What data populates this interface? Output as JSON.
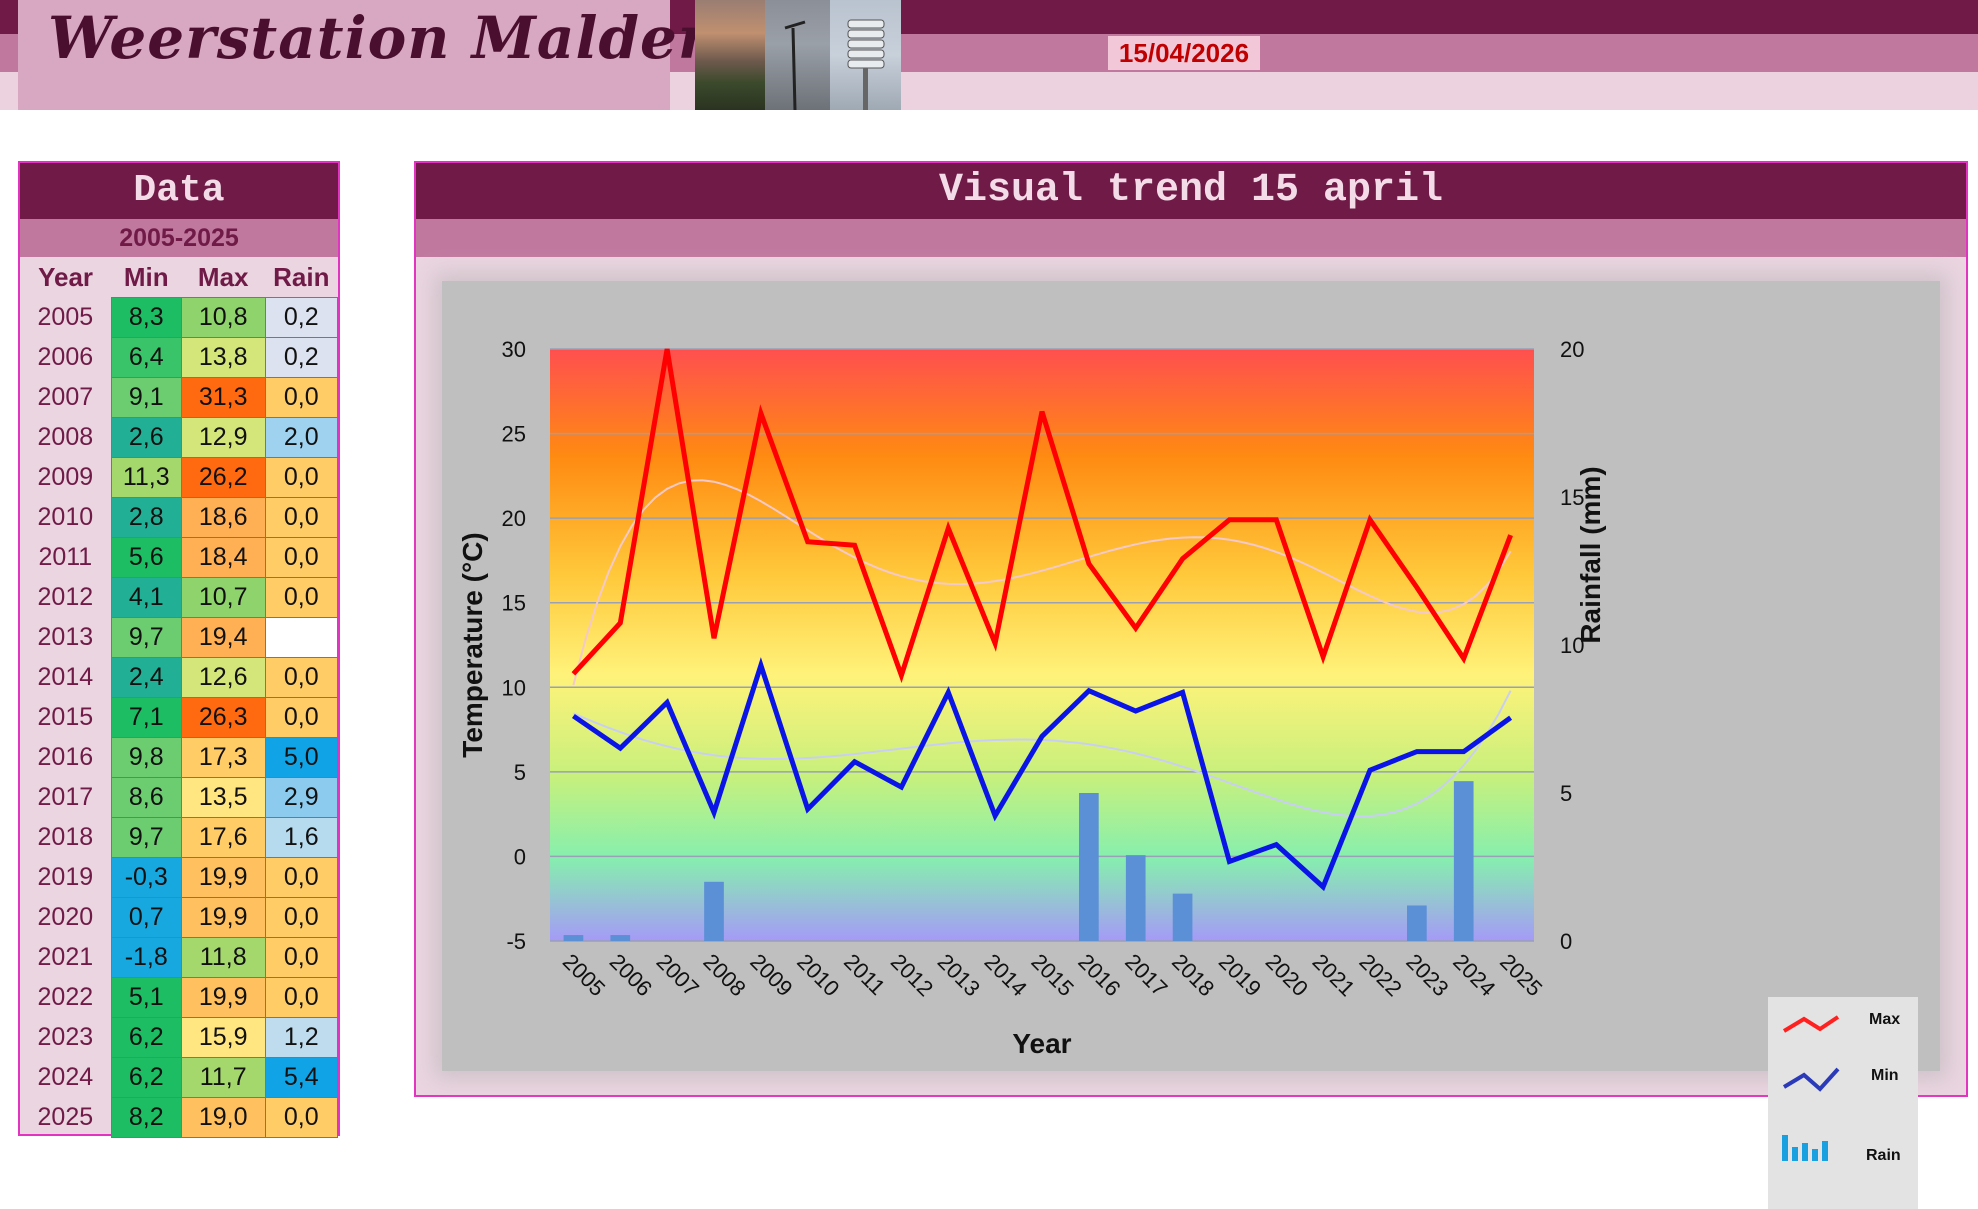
{
  "header": {
    "title": "Weerstation Malderen",
    "date": "15/04/2026"
  },
  "data_table": {
    "title": "Data",
    "range": "2005-2025",
    "columns": [
      "Year",
      "Min",
      "Max",
      "Rain"
    ],
    "rows": [
      {
        "year": "2005",
        "min": "8,3",
        "max": "10,8",
        "rain": "0,2"
      },
      {
        "year": "2006",
        "min": "6,4",
        "max": "13,8",
        "rain": "0,2"
      },
      {
        "year": "2007",
        "min": "9,1",
        "max": "31,3",
        "rain": "0,0"
      },
      {
        "year": "2008",
        "min": "2,6",
        "max": "12,9",
        "rain": "2,0"
      },
      {
        "year": "2009",
        "min": "11,3",
        "max": "26,2",
        "rain": "0,0"
      },
      {
        "year": "2010",
        "min": "2,8",
        "max": "18,6",
        "rain": "0,0"
      },
      {
        "year": "2011",
        "min": "5,6",
        "max": "18,4",
        "rain": "0,0"
      },
      {
        "year": "2012",
        "min": "4,1",
        "max": "10,7",
        "rain": "0,0"
      },
      {
        "year": "2013",
        "min": "9,7",
        "max": "19,4",
        "rain": ""
      },
      {
        "year": "2014",
        "min": "2,4",
        "max": "12,6",
        "rain": "0,0"
      },
      {
        "year": "2015",
        "min": "7,1",
        "max": "26,3",
        "rain": "0,0"
      },
      {
        "year": "2016",
        "min": "9,8",
        "max": "17,3",
        "rain": "5,0"
      },
      {
        "year": "2017",
        "min": "8,6",
        "max": "13,5",
        "rain": "2,9"
      },
      {
        "year": "2018",
        "min": "9,7",
        "max": "17,6",
        "rain": "1,6"
      },
      {
        "year": "2019",
        "min": "-0,3",
        "max": "19,9",
        "rain": "0,0"
      },
      {
        "year": "2020",
        "min": "0,7",
        "max": "19,9",
        "rain": "0,0"
      },
      {
        "year": "2021",
        "min": "-1,8",
        "max": "11,8",
        "rain": "0,0"
      },
      {
        "year": "2022",
        "min": "5,1",
        "max": "19,9",
        "rain": "0,0"
      },
      {
        "year": "2023",
        "min": "6,2",
        "max": "15,9",
        "rain": "1,2"
      },
      {
        "year": "2024",
        "min": "6,2",
        "max": "11,7",
        "rain": "5,4"
      },
      {
        "year": "2025",
        "min": "8,2",
        "max": "19,0",
        "rain": "0,0"
      }
    ],
    "cell_colors": {
      "min": [
        "#1cbd63",
        "#39c469",
        "#6ccc70",
        "#21b096",
        "#a5d86c",
        "#21b096",
        "#1cbd63",
        "#21b096",
        "#6ccc70",
        "#21b096",
        "#1cbd63",
        "#6ccc70",
        "#6ccc70",
        "#6ccc70",
        "#18a8e0",
        "#18a8e0",
        "#18a8e0",
        "#1cbd63",
        "#1cbd63",
        "#1cbd63",
        "#1cbd63"
      ],
      "max": [
        "#8fd36c",
        "#d4e67a",
        "#ff6a10",
        "#d4e67a",
        "#ff6a10",
        "#ffb055",
        "#ffb055",
        "#8fd36c",
        "#ffb055",
        "#d4e67a",
        "#ff6a10",
        "#ffcc66",
        "#ffe680",
        "#ffcc66",
        "#ffc060",
        "#ffc060",
        "#a5d86c",
        "#ffc060",
        "#ffe680",
        "#a5d86c",
        "#ffc060"
      ],
      "rain": [
        "#dce2f0",
        "#dce2f0",
        "#ffcc66",
        "#9fd2ef",
        "#ffcc66",
        "#ffcc66",
        "#ffcc66",
        "#ffcc66",
        "#ffffff",
        "#ffcc66",
        "#ffcc66",
        "#10a4e6",
        "#8ccbee",
        "#b6dbef",
        "#ffcc66",
        "#ffcc66",
        "#ffcc66",
        "#ffcc66",
        "#bfdcef",
        "#10a4e6",
        "#ffcc66"
      ]
    }
  },
  "chart_data": {
    "type": "line",
    "title": "Visual trend 15 april",
    "xlabel": "Year",
    "ylabel": "Temperature (°C)",
    "y2label": "Rainfall (mm)",
    "categories": [
      "2005",
      "2006",
      "2007",
      "2008",
      "2009",
      "2010",
      "2011",
      "2012",
      "2013",
      "2014",
      "2015",
      "2016",
      "2017",
      "2018",
      "2019",
      "2020",
      "2021",
      "2022",
      "2023",
      "2024",
      "2025"
    ],
    "ylim": [
      -5,
      30
    ],
    "y_ticks": [
      -5,
      0,
      5,
      10,
      15,
      20,
      25,
      30
    ],
    "y2lim": [
      0,
      20
    ],
    "y2_ticks": [
      0,
      5,
      10,
      15,
      20
    ],
    "series": [
      {
        "name": "Max",
        "type": "line",
        "axis": "y",
        "color": "#ff0000",
        "values": [
          10.8,
          13.8,
          31.3,
          12.9,
          26.2,
          18.6,
          18.4,
          10.7,
          19.4,
          12.6,
          26.3,
          17.3,
          13.5,
          17.6,
          19.9,
          19.9,
          11.8,
          19.9,
          15.9,
          11.7,
          19.0
        ]
      },
      {
        "name": "Min",
        "type": "line",
        "axis": "y",
        "color": "#0a14e6",
        "values": [
          8.3,
          6.4,
          9.1,
          2.6,
          11.3,
          2.8,
          5.6,
          4.1,
          9.7,
          2.4,
          7.1,
          9.8,
          8.6,
          9.7,
          -0.3,
          0.7,
          -1.8,
          5.1,
          6.2,
          6.2,
          8.2
        ]
      },
      {
        "name": "Rain",
        "type": "bar",
        "axis": "y2",
        "color": "#5b8fd6",
        "values": [
          0.2,
          0.2,
          0.0,
          2.0,
          0.0,
          0.0,
          0.0,
          0.0,
          null,
          0.0,
          0.0,
          5.0,
          2.9,
          1.6,
          0.0,
          0.0,
          0.0,
          0.0,
          1.2,
          5.4,
          0.0
        ]
      }
    ],
    "grid": true,
    "legend": "bottom-right"
  }
}
